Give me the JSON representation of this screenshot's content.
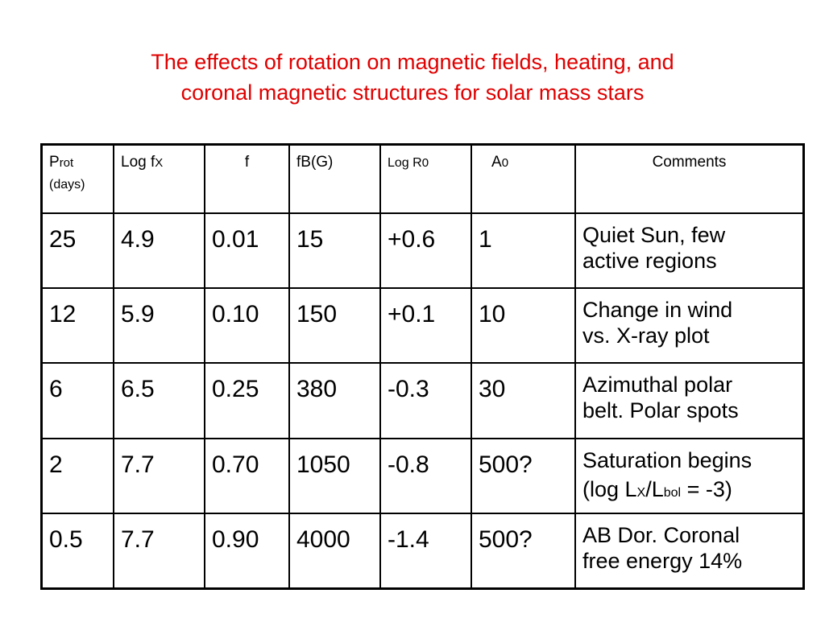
{
  "title": {
    "line1": "The effects of rotation on magnetic fields, heating, and",
    "line2": "coronal magnetic structures for solar mass stars"
  },
  "headers": {
    "prot_main": "P",
    "prot_sub": "rot",
    "prot_unit": "(days)",
    "logfx_main": "Log f",
    "logfx_sub": "X",
    "f": "f",
    "fbg": "fB(G)",
    "logr0_main": "Log R",
    "logr0_sub": "0",
    "a0_main": "A",
    "a0_sub": "0",
    "comments": "Comments"
  },
  "rows": [
    {
      "prot": "25",
      "logfx": "4.9",
      "f": "0.01",
      "fb": "15",
      "logr0": "+0.6",
      "a0": "1",
      "comment1": "Quiet Sun, few",
      "comment2": "active regions"
    },
    {
      "prot": "12",
      "logfx": "5.9",
      "f": "0.10",
      "fb": "150",
      "logr0": "+0.1",
      "a0": "10",
      "comment1": "Change in wind",
      "comment2": "vs. X-ray plot"
    },
    {
      "prot": "6",
      "logfx": "6.5",
      "f": "0.25",
      "fb": "380",
      "logr0": "-0.3",
      "a0": "30",
      "comment1": "Azimuthal polar",
      "comment2": "belt. Polar spots"
    },
    {
      "prot": "2",
      "logfx": "7.7",
      "f": "0.70",
      "fb": "1050",
      "logr0": "-0.8",
      "a0": "500?",
      "comment1": "Saturation begins",
      "comment2_pre": "(log L",
      "comment2_sub1": "X",
      "comment2_mid": "/L",
      "comment2_sub2": "bol",
      "comment2_post": " = -3)"
    },
    {
      "prot": "0.5",
      "logfx": "7.7",
      "f": "0.90",
      "fb": "4000",
      "logr0": "-1.4",
      "a0": "500?",
      "comment1": "AB Dor. Coronal",
      "comment2": "free energy 14%"
    }
  ]
}
